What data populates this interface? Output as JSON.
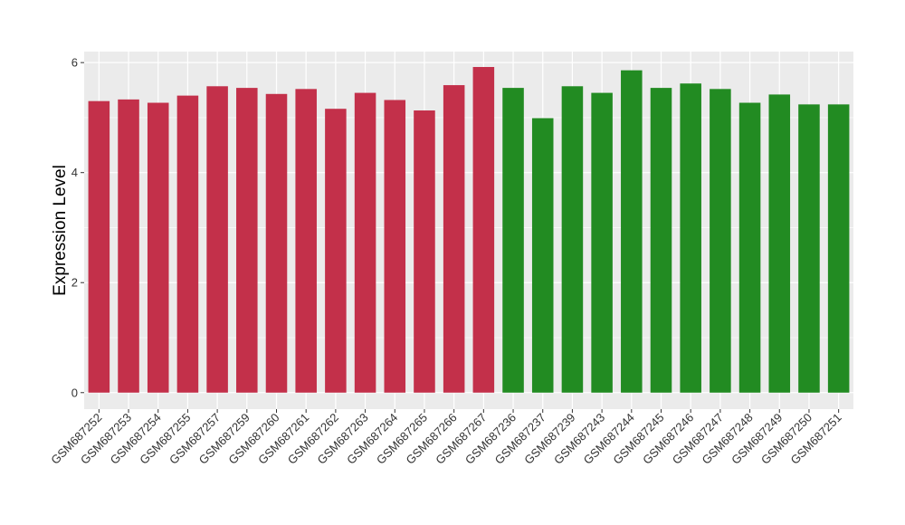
{
  "chart_data": {
    "type": "bar",
    "ylabel": "Expression Level",
    "xlabel": "",
    "ylim": [
      -0.3,
      6.2
    ],
    "yticks": [
      0,
      2,
      4,
      6
    ],
    "yticklabels": [
      "0",
      "2",
      "4",
      "6"
    ],
    "grid": true,
    "legend": "none",
    "colors": {
      "group1": "#c3304a",
      "group2": "#228b22",
      "panel": "#ebebeb",
      "grid": "#ffffff"
    },
    "categories": [
      "GSM687252",
      "GSM687253",
      "GSM687254",
      "GSM687255",
      "GSM687257",
      "GSM687259",
      "GSM687260",
      "GSM687261",
      "GSM687262",
      "GSM687263",
      "GSM687264",
      "GSM687265",
      "GSM687266",
      "GSM687267",
      "GSM687236",
      "GSM687237",
      "GSM687239",
      "GSM687243",
      "GSM687244",
      "GSM687245",
      "GSM687246",
      "GSM687247",
      "GSM687248",
      "GSM687249",
      "GSM687250",
      "GSM687251"
    ],
    "values": [
      5.3,
      5.33,
      5.27,
      5.4,
      5.57,
      5.54,
      5.43,
      5.52,
      5.16,
      5.45,
      5.32,
      5.13,
      5.59,
      5.92,
      5.54,
      4.99,
      5.57,
      5.45,
      5.86,
      5.54,
      5.62,
      5.52,
      5.27,
      5.42,
      5.24,
      5.24
    ],
    "groups": [
      1,
      1,
      1,
      1,
      1,
      1,
      1,
      1,
      1,
      1,
      1,
      1,
      1,
      1,
      2,
      2,
      2,
      2,
      2,
      2,
      2,
      2,
      2,
      2,
      2,
      2
    ]
  }
}
